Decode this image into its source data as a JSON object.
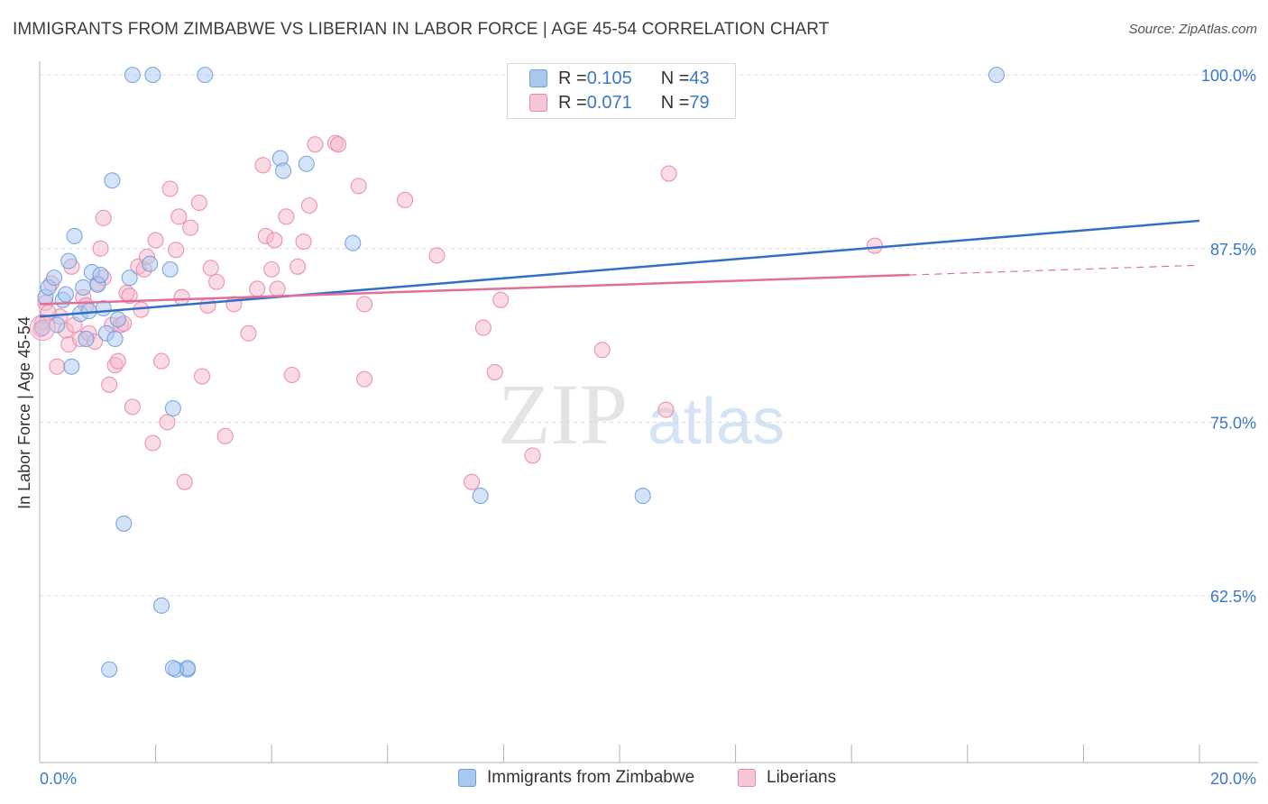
{
  "header": {
    "title": "IMMIGRANTS FROM ZIMBABWE VS LIBERIAN IN LABOR FORCE | AGE 45-54 CORRELATION CHART",
    "source": "Source: ZipAtlas.com"
  },
  "watermark": {
    "zip": "ZIP",
    "atlas": "atlas"
  },
  "legend_top": [
    {
      "r_label": "R = ",
      "r_value": "0.105",
      "n_label": "N = ",
      "n_value": "43"
    },
    {
      "r_label": "R = ",
      "r_value": "0.071",
      "n_label": "N = ",
      "n_value": "79"
    }
  ],
  "colors": {
    "blue_fill": "#a9c8ef",
    "blue_stroke": "#6f9fdc",
    "blue_line": "#2f6fc8",
    "pink_fill": "#f5b8cc",
    "pink_stroke": "#e88aa8",
    "pink_line": "#e0709a",
    "axis_label": "#3a78c9",
    "grid": "#dcdcdc"
  },
  "chart_data": {
    "type": "scatter",
    "ylabel": "In Labor Force | Age 45-54",
    "xlim": [
      0,
      20
    ],
    "ylim": [
      50.5,
      101.5
    ],
    "x_tick_labels": [
      "0.0%",
      "20.0%"
    ],
    "y_ticks": [
      {
        "value": 100,
        "label": "100.0%"
      },
      {
        "value": 87.5,
        "label": "87.5%"
      },
      {
        "value": 75,
        "label": "75.0%"
      },
      {
        "value": 62.5,
        "label": "62.5%"
      }
    ],
    "grid": true,
    "legend_position": "top-center",
    "series": [
      {
        "name": "Immigrants from Zimbabwe",
        "color": "blue",
        "trend": {
          "x0": 0,
          "y0": 82.6,
          "x1": 20,
          "y1": 89.5,
          "solid_until": 20
        },
        "points": [
          [
            0.05,
            81.8
          ],
          [
            0.1,
            84.0
          ],
          [
            0.15,
            84.7
          ],
          [
            0.25,
            85.4
          ],
          [
            0.3,
            82.0
          ],
          [
            0.4,
            83.8
          ],
          [
            0.45,
            84.2
          ],
          [
            0.5,
            86.6
          ],
          [
            0.55,
            79.0
          ],
          [
            0.6,
            88.4
          ],
          [
            0.7,
            82.8
          ],
          [
            0.75,
            84.7
          ],
          [
            0.8,
            81.0
          ],
          [
            0.85,
            83.0
          ],
          [
            0.9,
            85.8
          ],
          [
            1.0,
            84.9
          ],
          [
            1.05,
            85.6
          ],
          [
            1.1,
            83.2
          ],
          [
            1.15,
            81.4
          ],
          [
            1.25,
            92.4
          ],
          [
            1.3,
            81.0
          ],
          [
            1.35,
            82.4
          ],
          [
            1.45,
            67.7
          ],
          [
            1.55,
            85.4
          ],
          [
            1.6,
            100.0
          ],
          [
            1.9,
            86.4
          ],
          [
            1.95,
            100.0
          ],
          [
            2.1,
            61.8
          ],
          [
            2.25,
            86.0
          ],
          [
            2.3,
            76.0
          ],
          [
            2.55,
            57.2
          ],
          [
            2.55,
            57.3
          ],
          [
            2.35,
            57.2
          ],
          [
            2.3,
            57.3
          ],
          [
            1.2,
            57.2
          ],
          [
            2.85,
            100.0
          ],
          [
            4.15,
            94.0
          ],
          [
            4.2,
            93.1
          ],
          [
            4.6,
            93.6
          ],
          [
            5.4,
            87.9
          ],
          [
            7.6,
            69.7
          ],
          [
            10.4,
            69.7
          ],
          [
            16.5,
            100.0
          ]
        ]
      },
      {
        "name": "Liberians",
        "color": "pink",
        "trend": {
          "x0": 0,
          "y0": 83.5,
          "x1": 20,
          "y1": 86.3,
          "solid_until": 15
        },
        "points": [
          [
            0.05,
            82.2
          ],
          [
            0.1,
            83.6
          ],
          [
            0.2,
            85.0
          ],
          [
            0.3,
            79.0
          ],
          [
            0.35,
            82.6
          ],
          [
            0.45,
            81.6
          ],
          [
            0.5,
            80.6
          ],
          [
            0.55,
            86.2
          ],
          [
            0.6,
            82.0
          ],
          [
            0.7,
            81.0
          ],
          [
            0.75,
            84.0
          ],
          [
            0.8,
            83.4
          ],
          [
            0.85,
            81.4
          ],
          [
            0.95,
            80.8
          ],
          [
            1.0,
            85.0
          ],
          [
            1.05,
            87.5
          ],
          [
            1.1,
            85.4
          ],
          [
            1.1,
            89.7
          ],
          [
            1.2,
            77.7
          ],
          [
            1.25,
            82.0
          ],
          [
            1.3,
            79.1
          ],
          [
            1.35,
            79.4
          ],
          [
            1.4,
            82.0
          ],
          [
            1.45,
            82.1
          ],
          [
            1.5,
            84.3
          ],
          [
            1.55,
            84.1
          ],
          [
            1.6,
            76.1
          ],
          [
            1.7,
            86.2
          ],
          [
            1.75,
            83.1
          ],
          [
            1.8,
            86.0
          ],
          [
            1.85,
            86.9
          ],
          [
            1.95,
            73.5
          ],
          [
            2.0,
            88.1
          ],
          [
            2.1,
            79.4
          ],
          [
            2.2,
            75.0
          ],
          [
            2.25,
            91.8
          ],
          [
            2.35,
            87.4
          ],
          [
            2.4,
            89.8
          ],
          [
            2.45,
            84.0
          ],
          [
            2.5,
            70.7
          ],
          [
            2.6,
            89.0
          ],
          [
            2.75,
            90.8
          ],
          [
            2.8,
            78.3
          ],
          [
            2.9,
            83.4
          ],
          [
            2.95,
            86.1
          ],
          [
            3.05,
            85.1
          ],
          [
            3.2,
            74.0
          ],
          [
            3.35,
            83.5
          ],
          [
            3.6,
            81.4
          ],
          [
            3.75,
            84.6
          ],
          [
            3.85,
            93.5
          ],
          [
            3.9,
            88.4
          ],
          [
            4.0,
            86.0
          ],
          [
            4.05,
            88.1
          ],
          [
            4.1,
            84.6
          ],
          [
            4.25,
            89.8
          ],
          [
            4.35,
            78.4
          ],
          [
            4.45,
            86.2
          ],
          [
            4.55,
            88.0
          ],
          [
            4.65,
            90.6
          ],
          [
            4.75,
            95.0
          ],
          [
            5.1,
            95.1
          ],
          [
            5.15,
            95.0
          ],
          [
            5.5,
            92.0
          ],
          [
            5.6,
            78.1
          ],
          [
            5.6,
            83.5
          ],
          [
            6.3,
            91.0
          ],
          [
            6.85,
            87.0
          ],
          [
            7.45,
            70.7
          ],
          [
            7.65,
            81.8
          ],
          [
            7.85,
            78.6
          ],
          [
            7.95,
            83.8
          ],
          [
            8.5,
            72.6
          ],
          [
            9.7,
            80.2
          ],
          [
            10.8,
            75.9
          ],
          [
            10.85,
            92.9
          ],
          [
            14.4,
            87.7
          ],
          [
            0.02,
            81.7
          ],
          [
            0.15,
            82.9
          ]
        ]
      }
    ]
  }
}
